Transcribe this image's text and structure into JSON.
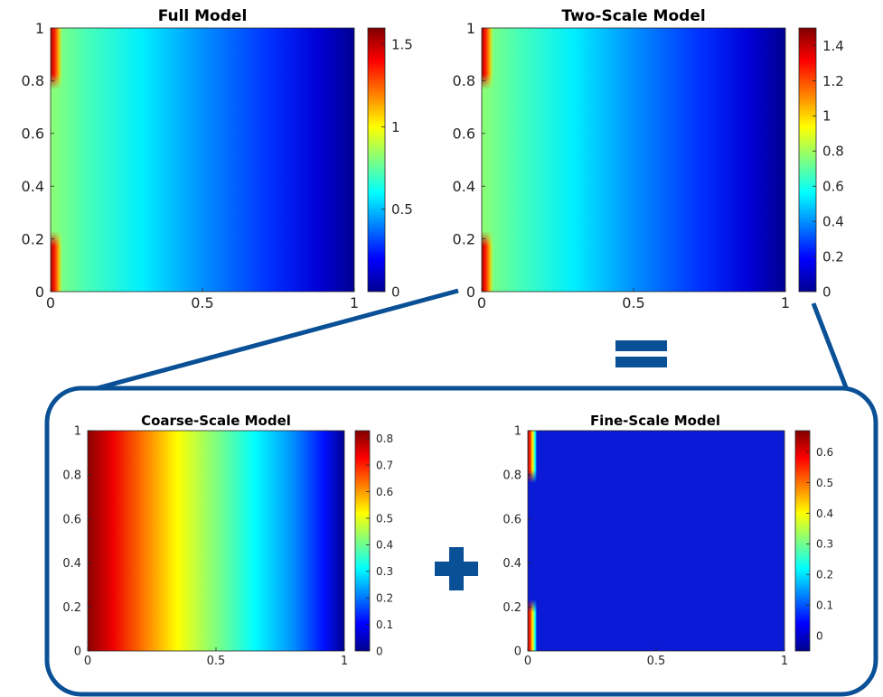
{
  "colors": {
    "accent": "#0a5096",
    "map_stops": [
      "#00008f",
      "#0000ff",
      "#00ffff",
      "#ffff00",
      "#ff0000",
      "#800000"
    ]
  },
  "operators": {
    "equals_icon": "equals-icon",
    "plus_icon": "plus-icon"
  },
  "chart_data": [
    {
      "type": "heatmap",
      "title": "Full Model",
      "x_ticks": [
        "0",
        "0.5",
        "1"
      ],
      "y_ticks": [
        "0",
        "0.2",
        "0.4",
        "0.6",
        "0.8",
        "1"
      ],
      "xlim": [
        0,
        1
      ],
      "ylim": [
        0,
        1
      ],
      "colorbar_range": [
        0,
        1.6
      ],
      "colorbar_ticks": [
        "0",
        "0.5",
        "1",
        "1.5"
      ],
      "colorbar_tick_values": [
        0,
        0.5,
        1,
        1.5
      ],
      "field": "smooth decay from left (u≈0.85 at x=0) to right (u=0 at x=1), with boundary peaks near x=0 for y in [0,0.22] and [0.78,1]",
      "peak": 1.6
    },
    {
      "type": "heatmap",
      "title": "Two-Scale Model",
      "x_ticks": [
        "0",
        "0.5",
        "1"
      ],
      "y_ticks": [
        "0",
        "0.2",
        "0.4",
        "0.6",
        "0.8",
        "1"
      ],
      "xlim": [
        0,
        1
      ],
      "ylim": [
        0,
        1
      ],
      "colorbar_range": [
        0,
        1.5
      ],
      "colorbar_ticks": [
        "0",
        "0.2",
        "0.4",
        "0.6",
        "0.8",
        "1",
        "1.2",
        "1.4"
      ],
      "colorbar_tick_values": [
        0,
        0.2,
        0.4,
        0.6,
        0.8,
        1,
        1.2,
        1.4
      ],
      "peak": 1.5
    },
    {
      "type": "heatmap",
      "title": "Coarse-Scale Model",
      "x_ticks": [
        "0",
        "0.5",
        "1"
      ],
      "y_ticks": [
        "0",
        "0.2",
        "0.4",
        "0.6",
        "0.8",
        "1"
      ],
      "xlim": [
        0,
        1
      ],
      "ylim": [
        0,
        1
      ],
      "colorbar_range": [
        0,
        0.83
      ],
      "colorbar_ticks": [
        "0",
        "0.1",
        "0.2",
        "0.3",
        "0.4",
        "0.5",
        "0.6",
        "0.7",
        "0.8"
      ],
      "colorbar_tick_values": [
        0,
        0.1,
        0.2,
        0.3,
        0.4,
        0.5,
        0.6,
        0.7,
        0.8
      ],
      "peak": 0.83
    },
    {
      "type": "heatmap",
      "title": "Fine-Scale Model",
      "x_ticks": [
        "0",
        "0.5",
        "1"
      ],
      "y_ticks": [
        "0",
        "0.2",
        "0.4",
        "0.6",
        "0.8",
        "1"
      ],
      "xlim": [
        0,
        1
      ],
      "ylim": [
        0,
        1
      ],
      "colorbar_range": [
        -0.05,
        0.67
      ],
      "colorbar_ticks": [
        "0",
        "0.1",
        "0.2",
        "0.3",
        "0.4",
        "0.5",
        "0.6"
      ],
      "colorbar_tick_values": [
        0,
        0.1,
        0.2,
        0.3,
        0.4,
        0.5,
        0.6
      ],
      "peak": 0.67
    }
  ]
}
